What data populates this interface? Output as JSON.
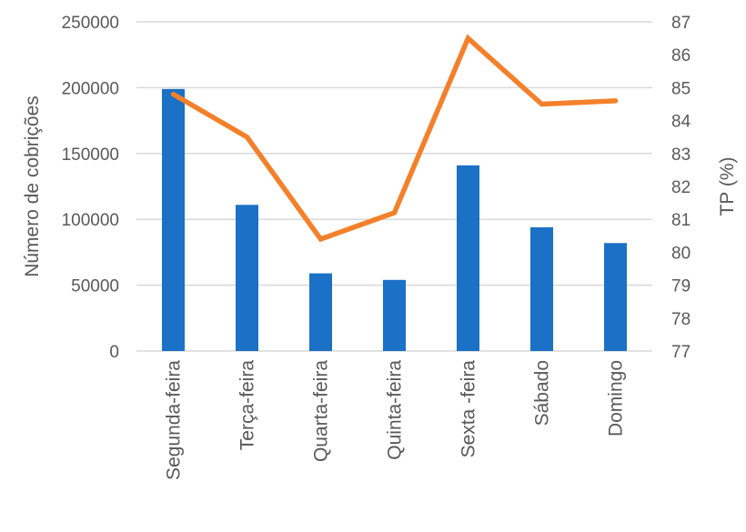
{
  "chart_data": {
    "type": "bar+line",
    "title": "",
    "categories": [
      "Segunda-feira",
      "Terça-feira",
      "Quarta-feira",
      "Quinta-feira",
      "Sexta -feira",
      "Sábado",
      "Domingo"
    ],
    "series": [
      {
        "name": "Número de cobrições",
        "type": "bar",
        "axis": "left",
        "color": "#1a71c6",
        "values": [
          199000,
          111000,
          59000,
          54000,
          141000,
          94000,
          82000
        ]
      },
      {
        "name": "TP (%)",
        "type": "line",
        "axis": "right",
        "color": "#f4802a",
        "values": [
          84.8,
          83.5,
          80.4,
          81.2,
          86.5,
          84.5,
          84.6
        ]
      }
    ],
    "xlabel": "",
    "ylabel": "Número de cobrições",
    "y2label": "TP (%)",
    "ylim": [
      0,
      250000
    ],
    "y2lim": [
      77,
      87
    ],
    "yticks": [
      "0",
      "50000",
      "100000",
      "150000",
      "200000",
      "250000"
    ],
    "y2ticks": [
      "77",
      "78",
      "79",
      "80",
      "81",
      "82",
      "83",
      "84",
      "85",
      "86",
      "87"
    ],
    "grid": true,
    "legend": "none",
    "gridline_color": "#d9d9d9",
    "text_color": "#595959"
  }
}
